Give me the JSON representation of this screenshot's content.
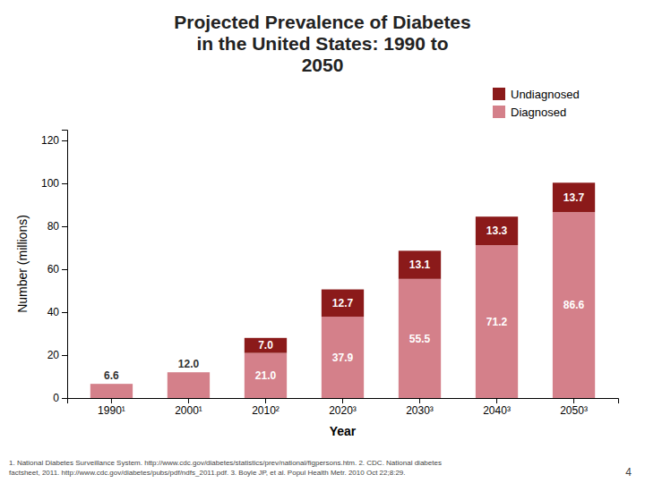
{
  "chart_data": {
    "type": "bar",
    "title": "Projected Prevalence of Diabetes\nin the United States: 1990 to\n2050",
    "xlabel": "Year",
    "ylabel": "Number (millions)",
    "categories": [
      "1990¹",
      "2000¹",
      "2010²",
      "2020³",
      "2030³",
      "2040³",
      "2050³"
    ],
    "series": [
      {
        "name": "Diagnosed",
        "color": "#d4808a",
        "values": [
          6.6,
          12.0,
          21.0,
          37.9,
          55.5,
          71.2,
          86.6
        ],
        "value_labels": [
          "6.6",
          "12.0",
          "21.0",
          "37.9",
          "55.5",
          "71.2",
          "86.6"
        ]
      },
      {
        "name": "Undiagnosed",
        "color": "#8b1a1a",
        "values": [
          0.0,
          0.0,
          7.0,
          12.7,
          13.1,
          13.3,
          13.7
        ],
        "value_labels": [
          null,
          null,
          "7.0",
          "12.7",
          "13.1",
          "13.3",
          "13.7"
        ]
      }
    ],
    "stacked": true,
    "data_labels": true,
    "ylim": [
      0,
      125
    ],
    "yticks": [
      0,
      20,
      40,
      60,
      80,
      100,
      120
    ],
    "grid": false,
    "legend": "upper right",
    "footnote": "1. National Diabetes Surveillance System. http://www.cdc.gov/diabetes/statistics/prev/national/figpersons.htm. 2. CDC. National diabetes\nfactsheet, 2011. http://www.cdc.gov/diabetes/pubs/pdf/ndfs_2011.pdf. 3. Boyle JP, et al. Popul Health Metr. 2010 Oct 22;8:29.",
    "page_number": "4"
  }
}
